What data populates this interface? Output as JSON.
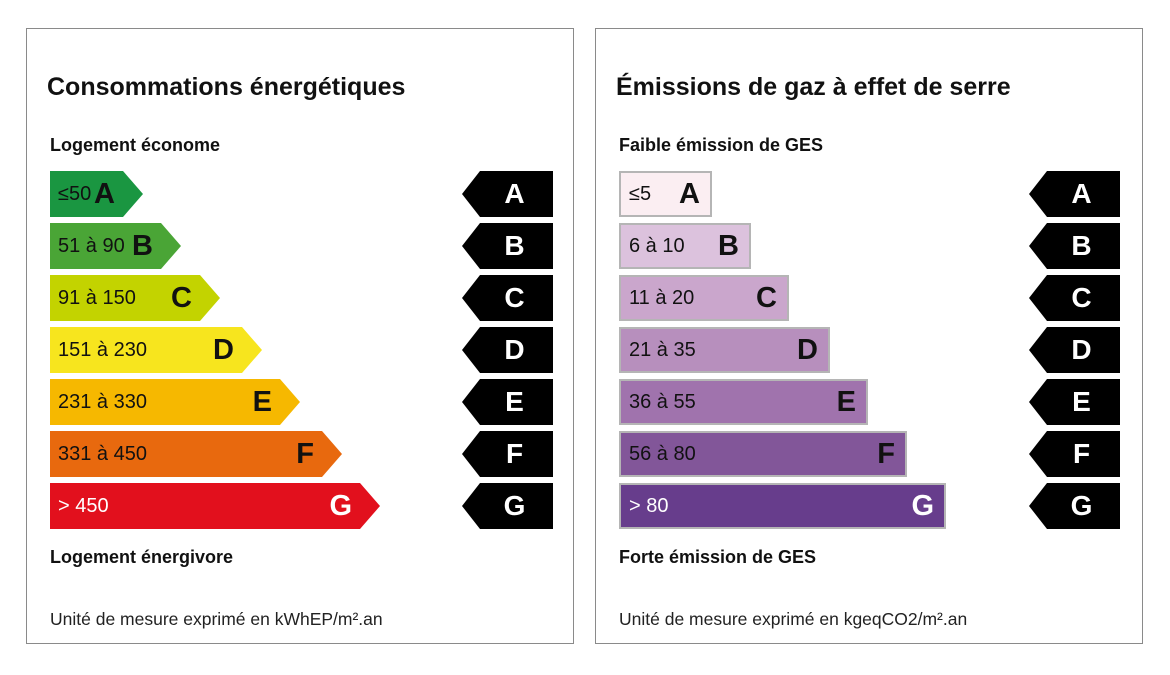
{
  "energy": {
    "title": "Consommations énergétiques",
    "top_label": "Logement économe",
    "bottom_label": "Logement énergivore",
    "unit": "Unité de mesure exprimé en kWhEP/m².an",
    "classes": [
      {
        "letter": "A",
        "range": "≤50",
        "color": "#1a9641",
        "text": "#111"
      },
      {
        "letter": "B",
        "range": "51 à 90",
        "color": "#4aa536",
        "text": "#111"
      },
      {
        "letter": "C",
        "range": "91 à 150",
        "color": "#c3d300",
        "text": "#111"
      },
      {
        "letter": "D",
        "range": "151 à 230",
        "color": "#f7e51e",
        "text": "#111"
      },
      {
        "letter": "E",
        "range": "231 à 330",
        "color": "#f6b800",
        "text": "#111"
      },
      {
        "letter": "F",
        "range": "331 à 450",
        "color": "#e8690e",
        "text": "#111"
      },
      {
        "letter": "G",
        "range": "> 450",
        "color": "#e2101d",
        "text": "#fff"
      }
    ]
  },
  "ges": {
    "title": "Émissions de gaz à effet de serre",
    "top_label": "Faible émission de GES",
    "bottom_label": "Forte émission de GES",
    "unit": "Unité de mesure exprimé en kgeqCO2/m².an",
    "classes": [
      {
        "letter": "A",
        "range": "≤5",
        "color": "#fbeef2",
        "text": "#111"
      },
      {
        "letter": "B",
        "range": "6 à 10",
        "color": "#dcc2dd",
        "text": "#111"
      },
      {
        "letter": "C",
        "range": "11 à 20",
        "color": "#caa6cc",
        "text": "#111"
      },
      {
        "letter": "D",
        "range": "21 à 35",
        "color": "#b78fbd",
        "text": "#111"
      },
      {
        "letter": "E",
        "range": "36 à 55",
        "color": "#a073ad",
        "text": "#111"
      },
      {
        "letter": "F",
        "range": "56 à 80",
        "color": "#825699",
        "text": "#111"
      },
      {
        "letter": "G",
        "range": "> 80",
        "color": "#673d8c",
        "text": "#fff"
      }
    ]
  }
}
